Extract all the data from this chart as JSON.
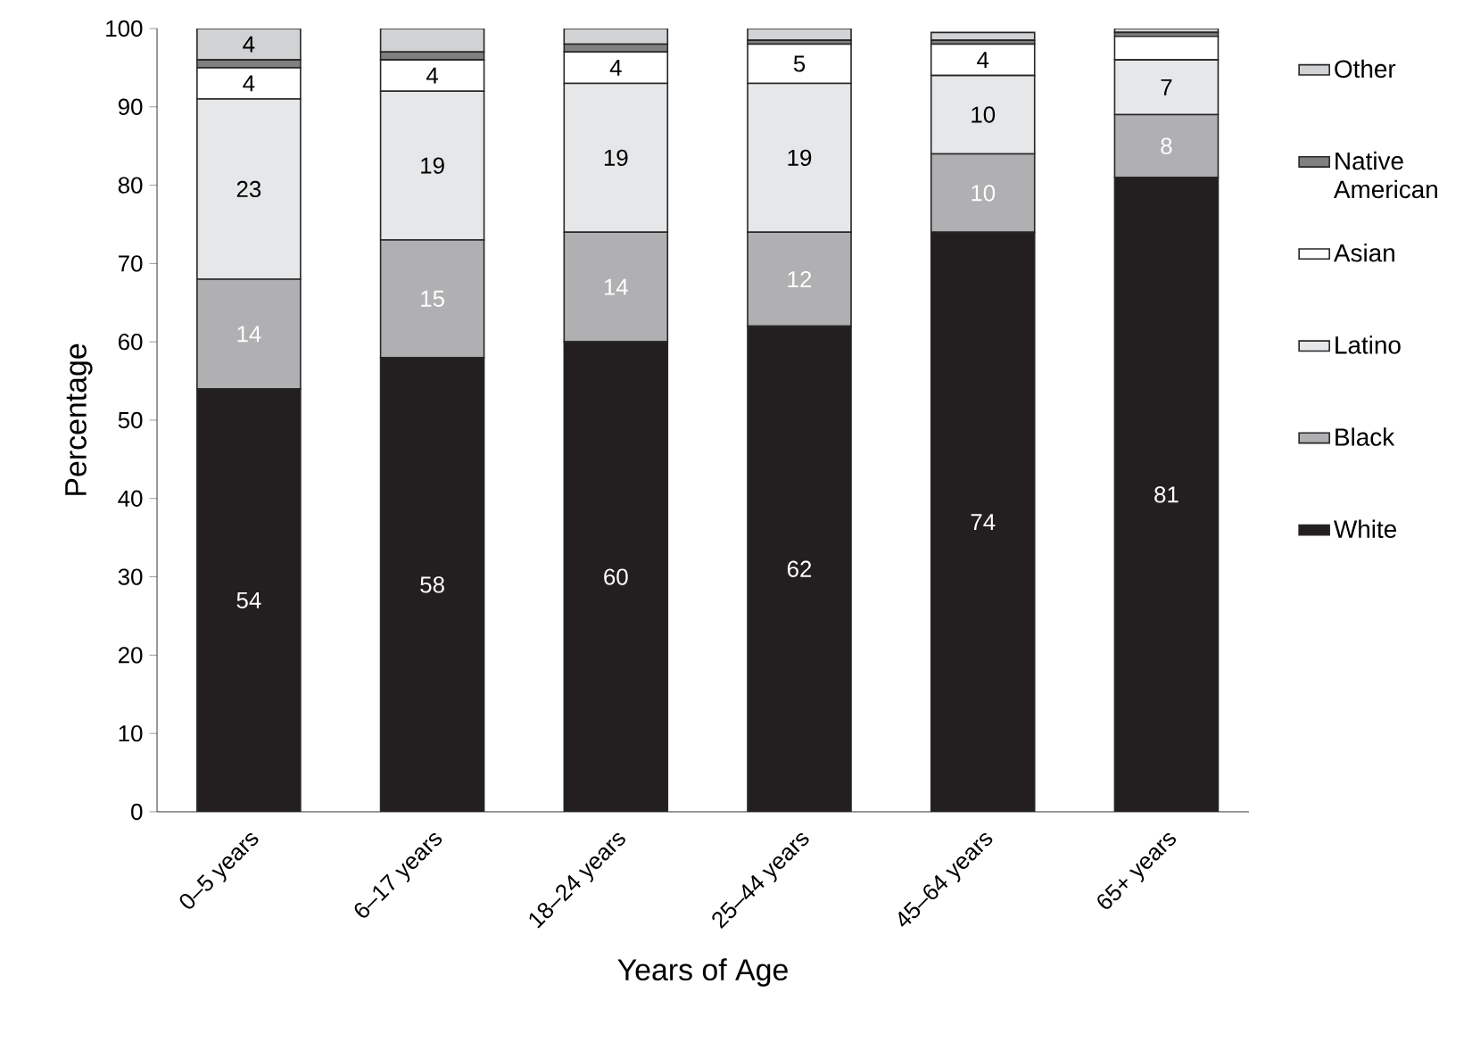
{
  "chart_data": {
    "type": "bar",
    "stacked": true,
    "xlabel": "Years of Age",
    "ylabel": "Percentage",
    "categories": [
      "0–5 years",
      "6–17 years",
      "18–24 years",
      "25–44 years",
      "45–64 years",
      "65+ years"
    ],
    "ylim": [
      0,
      100
    ],
    "yticks": [
      0,
      10,
      20,
      30,
      40,
      50,
      60,
      70,
      80,
      90,
      100
    ],
    "legend": "right",
    "grid": false,
    "series": [
      {
        "name": "White",
        "color": "#231f20",
        "values": [
          54,
          58,
          60,
          62,
          74,
          81
        ],
        "value_labels": [
          "54",
          "58",
          "60",
          "62",
          "74",
          "81"
        ]
      },
      {
        "name": "Black",
        "color": "#b0b0b2",
        "values": [
          14,
          15,
          14,
          12,
          10,
          8
        ],
        "value_labels": [
          "14",
          "15",
          "14",
          "12",
          "10",
          "8"
        ]
      },
      {
        "name": "Latino",
        "color": "#e6e7e8",
        "values": [
          23,
          19,
          19,
          19,
          10,
          7
        ],
        "value_labels": [
          "23",
          "19",
          "19",
          "19",
          "10",
          "7"
        ]
      },
      {
        "name": "Asian",
        "color": "#ffffff",
        "values": [
          4,
          4,
          4,
          5,
          4,
          3
        ],
        "value_labels": [
          "4",
          "4",
          "4",
          "5",
          "4",
          null
        ]
      },
      {
        "name": "Native American",
        "color": "#808080",
        "values": [
          1,
          1,
          1,
          0.5,
          0.5,
          0.5
        ]
      },
      {
        "name": "Other",
        "color": "#d1d2d4",
        "values": [
          4,
          3,
          2,
          1.5,
          1,
          0.5
        ],
        "value_labels": [
          "4",
          null,
          null,
          null,
          null,
          null
        ]
      }
    ]
  }
}
